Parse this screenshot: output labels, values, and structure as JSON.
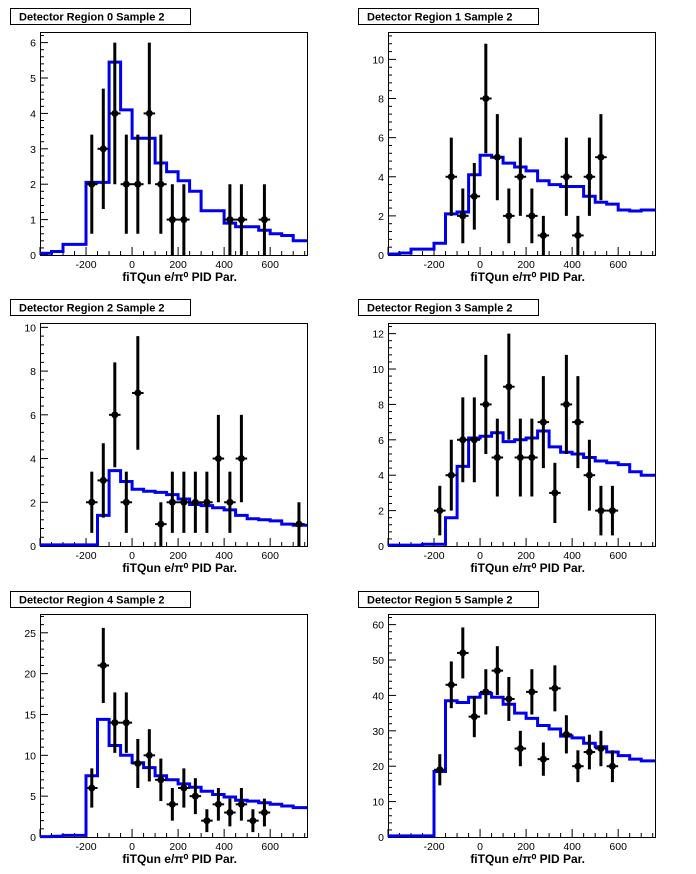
{
  "chart_data": [
    {
      "type": "step+errorbar",
      "title": "Detector Region 0 Sample 2",
      "xlabel": "fiTQun e/π⁰ PID Par.",
      "xlim": [
        -400,
        760
      ],
      "ylim": [
        0,
        6.3
      ],
      "xticks": [
        -200,
        0,
        200,
        400,
        600
      ],
      "yticks": [
        0,
        1,
        2,
        3,
        4,
        5,
        6
      ],
      "prediction": {
        "edges": [
          -400,
          -350,
          -300,
          -250,
          -200,
          -150,
          -100,
          -50,
          0,
          50,
          100,
          150,
          200,
          250,
          300,
          350,
          400,
          450,
          500,
          550,
          600,
          650,
          700,
          760
        ],
        "values": [
          0.05,
          0.1,
          0.3,
          0.3,
          2.05,
          2.05,
          5.45,
          4.1,
          3.3,
          3.3,
          2.6,
          2.35,
          2.1,
          1.8,
          1.25,
          1.25,
          0.9,
          0.8,
          0.8,
          0.7,
          0.6,
          0.55,
          0.4
        ]
      },
      "data": {
        "x": [
          -175,
          -125,
          -75,
          -25,
          25,
          75,
          125,
          175,
          225,
          275,
          325,
          375,
          425,
          475,
          525,
          575,
          625,
          675,
          725
        ],
        "y": [
          2,
          3,
          4,
          2,
          2,
          4,
          2,
          1,
          1,
          0,
          0,
          0,
          1,
          1,
          0,
          1,
          0,
          0,
          0
        ],
        "err": [
          1.4,
          1.7,
          2.0,
          1.4,
          1.4,
          2.0,
          1.4,
          1.0,
          1.0,
          0,
          0,
          0,
          1.0,
          1.0,
          0,
          1.0,
          0,
          0,
          0
        ]
      }
    },
    {
      "type": "step+errorbar",
      "title": "Detector Region 1 Sample 2",
      "xlabel": "fiTQun e/π⁰ PID Par.",
      "xlim": [
        -400,
        760
      ],
      "ylim": [
        0,
        11.4
      ],
      "xticks": [
        -200,
        0,
        200,
        400,
        600
      ],
      "yticks": [
        0,
        2,
        4,
        6,
        8,
        10
      ],
      "prediction": {
        "edges": [
          -400,
          -350,
          -300,
          -250,
          -200,
          -150,
          -100,
          -50,
          0,
          50,
          100,
          150,
          200,
          250,
          300,
          350,
          400,
          450,
          500,
          550,
          600,
          650,
          700,
          760
        ],
        "values": [
          0.05,
          0.1,
          0.3,
          0.3,
          0.6,
          2.1,
          2.2,
          4.1,
          5.1,
          5.0,
          4.7,
          4.5,
          4.3,
          3.8,
          3.6,
          3.5,
          3.5,
          3.0,
          2.7,
          2.6,
          2.3,
          2.25,
          2.3
        ]
      },
      "data": {
        "x": [
          -175,
          -125,
          -75,
          -25,
          25,
          75,
          125,
          175,
          225,
          275,
          325,
          375,
          425,
          475,
          525,
          575,
          625,
          675,
          725
        ],
        "y": [
          0,
          4,
          2,
          3,
          8,
          5,
          2,
          4,
          2,
          1,
          0,
          4,
          1,
          4,
          5,
          0,
          0,
          0,
          0
        ],
        "err": [
          0,
          2.0,
          1.4,
          1.7,
          2.8,
          2.2,
          1.4,
          2.0,
          1.4,
          1.0,
          0,
          2.0,
          1.0,
          2.0,
          2.2,
          0,
          0,
          0,
          0
        ]
      }
    },
    {
      "type": "step+errorbar",
      "title": "Detector Region 2 Sample 2",
      "xlabel": "fiTQun e/π⁰ PID Par.",
      "xlim": [
        -400,
        760
      ],
      "ylim": [
        0,
        10.2
      ],
      "xticks": [
        -200,
        0,
        200,
        400,
        600
      ],
      "yticks": [
        0,
        2,
        4,
        6,
        8,
        10
      ],
      "prediction": {
        "edges": [
          -400,
          -350,
          -300,
          -250,
          -200,
          -150,
          -100,
          -50,
          0,
          50,
          100,
          150,
          200,
          250,
          300,
          350,
          400,
          450,
          500,
          550,
          600,
          650,
          700,
          760
        ],
        "values": [
          0.05,
          0.05,
          0.05,
          0.05,
          0.05,
          1.4,
          3.45,
          2.95,
          2.6,
          2.5,
          2.45,
          2.35,
          2.15,
          1.9,
          1.85,
          1.75,
          1.65,
          1.4,
          1.25,
          1.2,
          1.15,
          1.0,
          0.95
        ]
      },
      "data": {
        "x": [
          -175,
          -125,
          -75,
          -25,
          25,
          75,
          125,
          175,
          225,
          275,
          325,
          375,
          425,
          475,
          525,
          575,
          625,
          675,
          725
        ],
        "y": [
          2,
          3,
          6,
          2,
          7,
          0,
          1,
          2,
          2,
          2,
          2,
          4,
          2,
          4,
          0,
          0,
          0,
          0,
          1
        ],
        "err": [
          1.4,
          1.7,
          2.4,
          1.4,
          2.6,
          0,
          1.0,
          1.4,
          1.4,
          1.4,
          1.4,
          2.0,
          1.4,
          2.0,
          0,
          0,
          0,
          0,
          1.0
        ]
      }
    },
    {
      "type": "step+errorbar",
      "title": "Detector Region 3 Sample 2",
      "xlabel": "fiTQun e/π⁰ PID Par.",
      "xlim": [
        -400,
        760
      ],
      "ylim": [
        0,
        12.6
      ],
      "xticks": [
        -200,
        0,
        200,
        400,
        600
      ],
      "yticks": [
        0,
        2,
        4,
        6,
        8,
        10,
        12
      ],
      "prediction": {
        "edges": [
          -400,
          -350,
          -300,
          -250,
          -200,
          -150,
          -100,
          -50,
          0,
          50,
          100,
          150,
          200,
          250,
          300,
          350,
          400,
          450,
          500,
          550,
          600,
          650,
          700,
          760
        ],
        "values": [
          0.05,
          0.05,
          0.05,
          0.1,
          0.1,
          1.6,
          4.5,
          6.1,
          6.2,
          6.4,
          5.9,
          6.0,
          6.1,
          6.5,
          5.6,
          5.3,
          5.2,
          5.0,
          4.8,
          4.7,
          4.6,
          4.2,
          4.0
        ]
      },
      "data": {
        "x": [
          -175,
          -125,
          -75,
          -25,
          25,
          75,
          125,
          175,
          225,
          275,
          325,
          375,
          425,
          475,
          525,
          575,
          625,
          675,
          725
        ],
        "y": [
          2,
          4,
          6,
          6,
          8,
          5,
          9,
          5,
          5,
          7,
          3,
          8,
          7,
          4,
          2,
          2,
          0,
          0,
          0
        ],
        "err": [
          1.4,
          2.0,
          2.4,
          2.4,
          2.8,
          2.2,
          3.0,
          2.2,
          2.2,
          2.6,
          1.7,
          2.8,
          2.6,
          2.0,
          1.4,
          1.4,
          0,
          0,
          0
        ]
      }
    },
    {
      "type": "step+errorbar",
      "title": "Detector Region 4 Sample 2",
      "xlabel": "fiTQun e/π⁰ PID Par.",
      "xlim": [
        -400,
        760
      ],
      "ylim": [
        0,
        27.3
      ],
      "xticks": [
        -200,
        0,
        200,
        400,
        600
      ],
      "yticks": [
        0,
        5,
        10,
        15,
        20,
        25
      ],
      "prediction": {
        "edges": [
          -400,
          -350,
          -300,
          -250,
          -200,
          -150,
          -100,
          -50,
          0,
          50,
          100,
          150,
          200,
          250,
          300,
          350,
          400,
          450,
          500,
          550,
          600,
          650,
          700,
          760
        ],
        "values": [
          0.05,
          0.1,
          0.2,
          0.2,
          7.5,
          14.4,
          11.2,
          10.0,
          9.1,
          8.5,
          7.5,
          7.0,
          6.5,
          6.1,
          5.6,
          5.2,
          4.9,
          4.5,
          4.4,
          4.2,
          4.0,
          3.8,
          3.6
        ]
      },
      "data": {
        "x": [
          -175,
          -125,
          -75,
          -25,
          25,
          75,
          125,
          175,
          225,
          275,
          325,
          375,
          425,
          475,
          525,
          575,
          625,
          675,
          725
        ],
        "y": [
          6,
          21,
          14,
          14,
          9,
          10,
          7,
          4,
          6,
          5,
          2,
          4,
          3,
          4,
          2,
          3,
          0,
          0,
          0
        ],
        "err": [
          2.4,
          4.6,
          3.7,
          3.7,
          3.0,
          3.2,
          2.6,
          2.0,
          2.4,
          2.2,
          1.4,
          2.0,
          1.7,
          2.0,
          1.4,
          1.7,
          0,
          0,
          0
        ]
      }
    },
    {
      "type": "step+errorbar",
      "title": "Detector Region 5 Sample 2",
      "xlabel": "fiTQun e/π⁰ PID Par.",
      "xlim": [
        -400,
        760
      ],
      "ylim": [
        0,
        63
      ],
      "xticks": [
        -200,
        0,
        200,
        400,
        600
      ],
      "yticks": [
        0,
        10,
        20,
        30,
        40,
        50,
        60
      ],
      "prediction": {
        "edges": [
          -400,
          -350,
          -300,
          -250,
          -200,
          -150,
          -100,
          -50,
          0,
          50,
          100,
          150,
          200,
          250,
          300,
          350,
          400,
          450,
          500,
          550,
          600,
          650,
          700,
          760
        ],
        "values": [
          0.3,
          0.3,
          0.3,
          0.3,
          18.5,
          38.5,
          38.0,
          39.5,
          40.5,
          39.5,
          37.5,
          35.0,
          33.5,
          31.5,
          30.5,
          28.5,
          28.0,
          26.5,
          25.5,
          24.0,
          23.0,
          22.0,
          21.5
        ]
      },
      "data": {
        "x": [
          -175,
          -125,
          -75,
          -25,
          25,
          75,
          125,
          175,
          225,
          275,
          325,
          375,
          425,
          475,
          525,
          575,
          625,
          675,
          725
        ],
        "y": [
          19,
          43,
          52,
          34,
          41,
          47,
          39,
          25,
          41,
          22,
          42,
          29,
          20,
          24,
          25,
          20,
          0,
          0,
          0
        ],
        "err": [
          4.4,
          6.6,
          7.2,
          5.8,
          6.4,
          6.9,
          6.2,
          5.0,
          6.4,
          4.7,
          6.5,
          5.4,
          4.5,
          4.9,
          5.0,
          4.5,
          0,
          0,
          0
        ]
      }
    }
  ]
}
